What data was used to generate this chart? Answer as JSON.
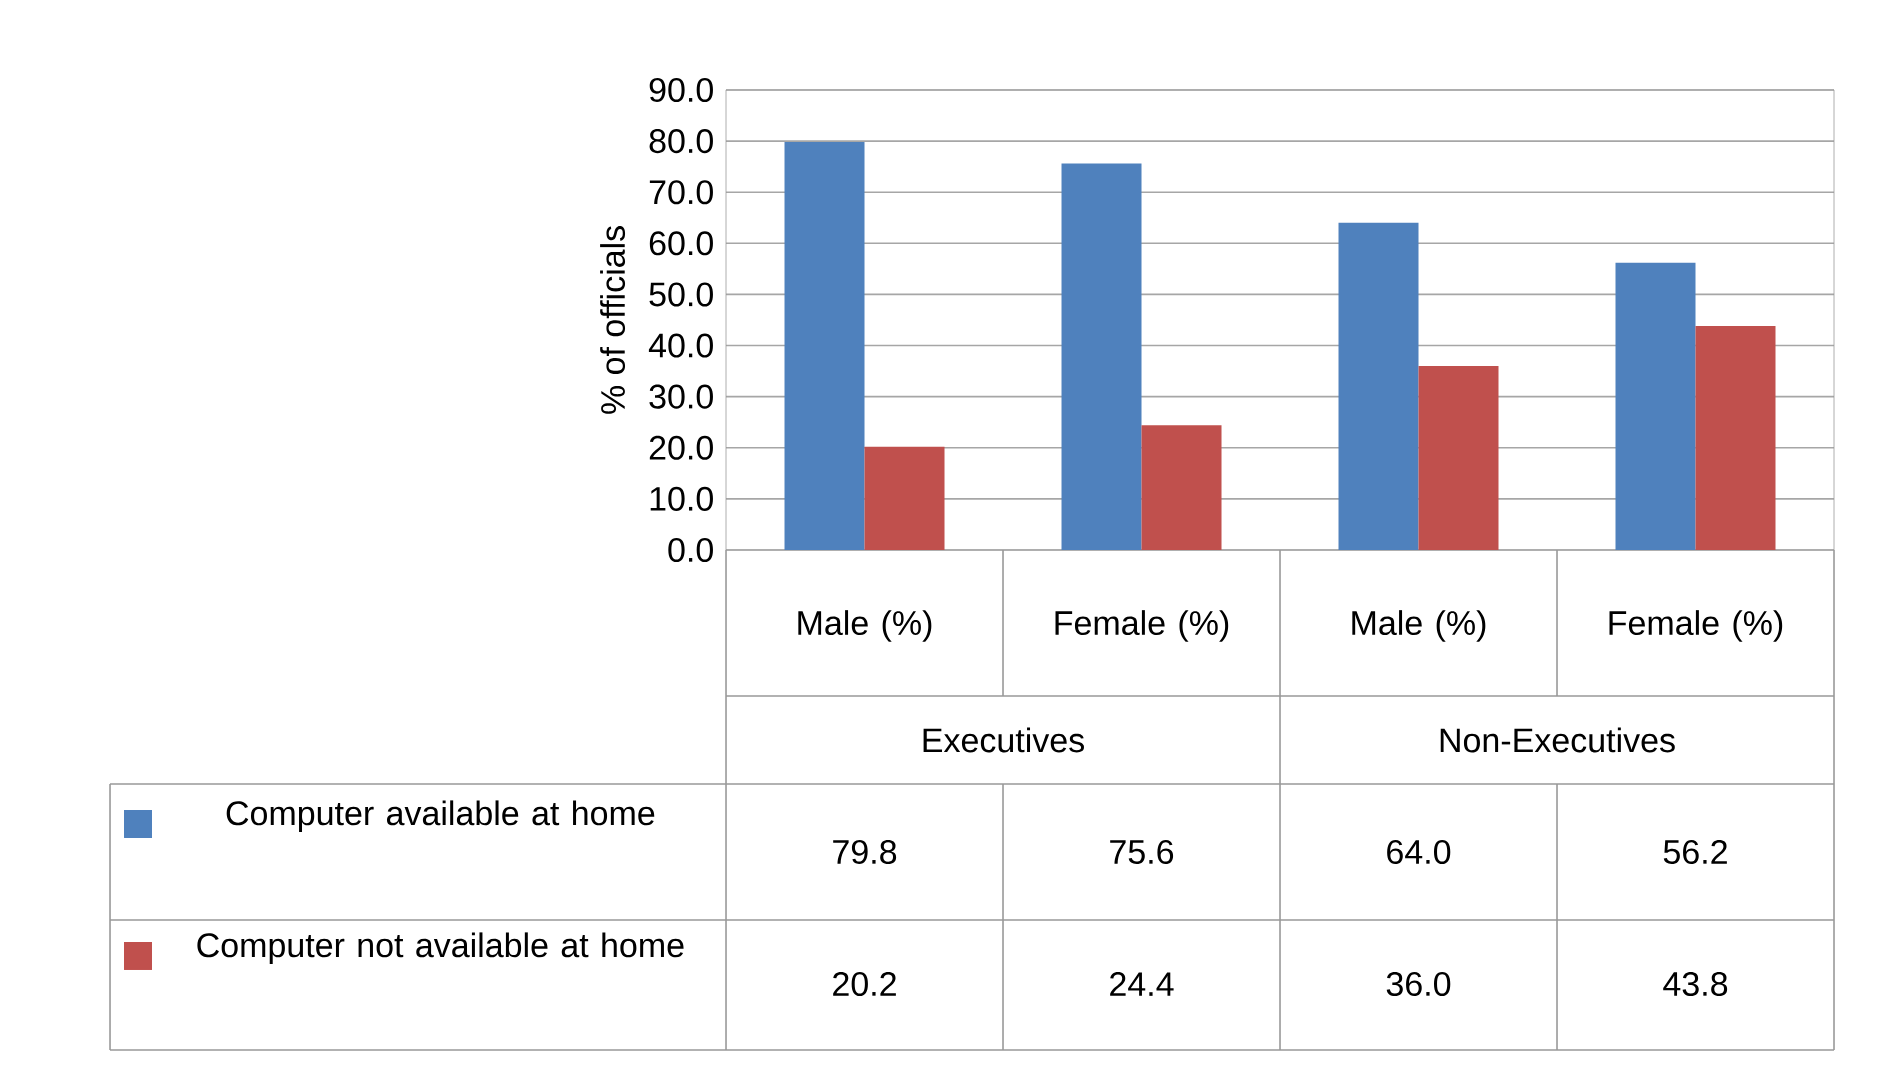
{
  "chart_data": {
    "type": "bar",
    "categories": [
      "Male (%)",
      "Female (%)",
      "Male (%)",
      "Female (%)"
    ],
    "annotations": [
      "Executives",
      "Non-Executives"
    ],
    "ylabel": "% of officials",
    "series": [
      {
        "name": "Computer available at home",
        "color": "#4f81bd",
        "values": [
          79.8,
          75.6,
          64.0,
          56.2
        ],
        "value_labels": [
          "79.8",
          "75.6",
          "64.0",
          "56.2"
        ]
      },
      {
        "name": "Computer not available at home",
        "color": "#c0504d",
        "values": [
          20.2,
          24.4,
          36.0,
          43.8
        ],
        "value_labels": [
          "20.2",
          "24.4",
          "36.0",
          "43.8"
        ]
      }
    ],
    "ylim": [
      0,
      90
    ],
    "yticks": [
      {
        "value": 0,
        "label": "0.0"
      },
      {
        "value": 10,
        "label": "10.0"
      },
      {
        "value": 20,
        "label": "20.0"
      },
      {
        "value": 30,
        "label": "30.0"
      },
      {
        "value": 40,
        "label": "40.0"
      },
      {
        "value": 50,
        "label": "50.0"
      },
      {
        "value": 60,
        "label": "60.0"
      },
      {
        "value": 70,
        "label": "70.0"
      },
      {
        "value": 80,
        "label": "80.0"
      },
      {
        "value": 90,
        "label": "90.0"
      }
    ],
    "grid": "y",
    "legend": "bottom",
    "data_labels": true
  }
}
